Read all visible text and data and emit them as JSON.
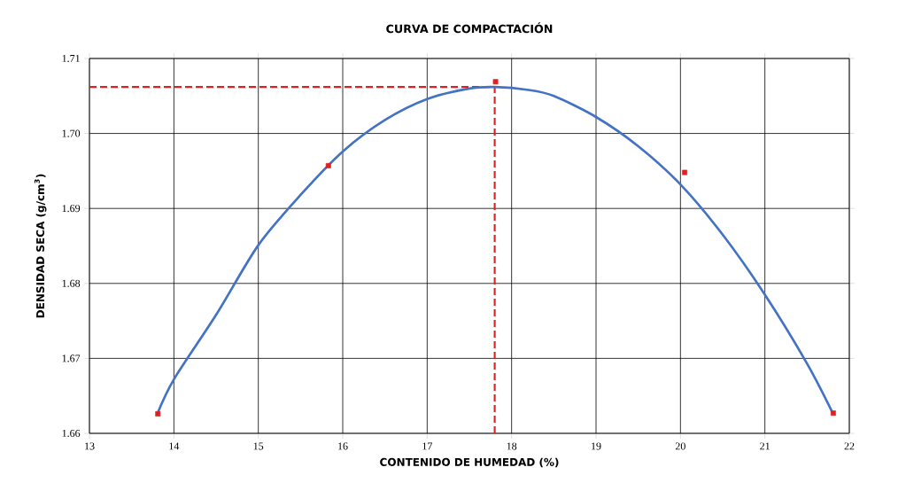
{
  "chart_data": {
    "type": "scatter",
    "title": "CURVA DE COMPACTACIÓN",
    "xlabel": "CONTENIDO DE HUMEDAD (%)",
    "ylabel": "DENSIDAD SECA (g/cm$^{3}$)",
    "xlim": [
      13,
      22
    ],
    "xticks": [
      13,
      14,
      15,
      16,
      17,
      18,
      19,
      20,
      21,
      22
    ],
    "ylim": [
      1.66,
      1.71
    ],
    "yticks": [
      1.66,
      1.67,
      1.68,
      1.69,
      {
        "value": 1.7,
        "label": "1.70"
      },
      1.71
    ],
    "grid": true,
    "series": [
      {
        "marker": "square",
        "color": "#e02020",
        "x": [
          13.81,
          15.83,
          17.81,
          20.05,
          21.81
        ],
        "values": [
          1.6626,
          1.6957,
          1.7069,
          1.6948,
          1.6627
        ]
      },
      {
        "type": "line",
        "marker": "none",
        "color": "#4472c4",
        "x": [
          13.8,
          14,
          14.5,
          15,
          15.5,
          16,
          16.5,
          17,
          17.5,
          17.8,
          18.2,
          18.5,
          19,
          19.5,
          20,
          20.5,
          21,
          21.5,
          21.8
        ],
        "values": [
          1.6625,
          1.6672,
          1.6758,
          1.6851,
          1.6918,
          1.6976,
          1.7018,
          1.7046,
          1.706,
          1.7062,
          1.7058,
          1.705,
          1.7022,
          1.6983,
          1.6932,
          1.6865,
          1.6785,
          1.6693,
          1.6628
        ]
      }
    ],
    "ref_lines": [
      {
        "axis": "y",
        "value": 1.7062,
        "color": "#e02020",
        "line_style": "dashed"
      },
      {
        "axis": "x",
        "value": 17.8,
        "color": "#e02020",
        "line_style": "dashed"
      }
    ]
  }
}
